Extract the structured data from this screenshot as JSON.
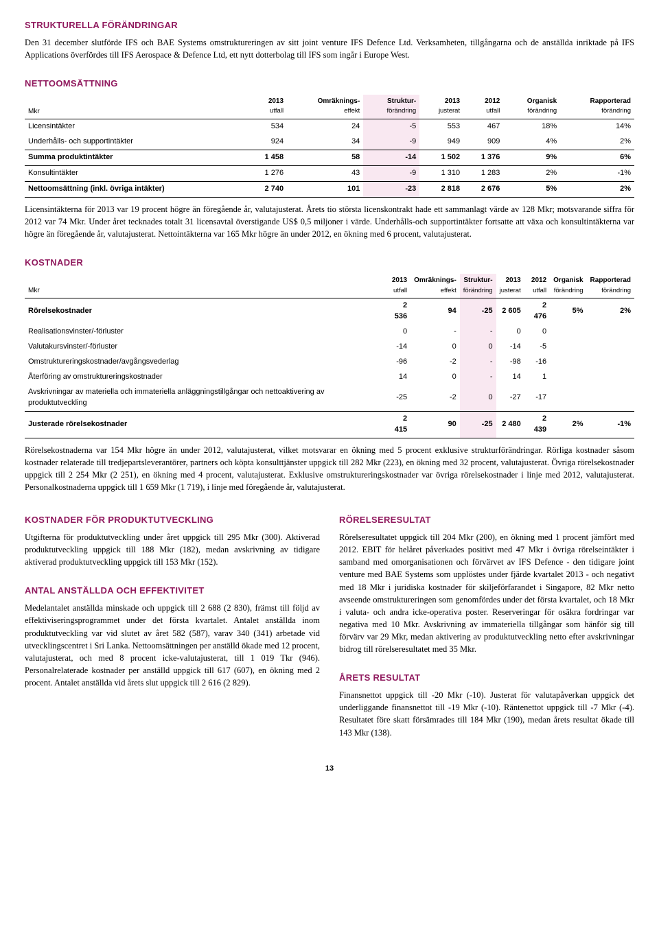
{
  "strukturella": {
    "heading": "STRUKTURELLA FÖRÄNDRINGAR",
    "body": "Den 31 december slutförde IFS och BAE Systems omstruktureringen av sitt joint venture IFS Defence Ltd. Verksamheten, tillgångarna och de anställda inriktade på IFS Applications överfördes till IFS Aerospace & Defence Ltd, ett nytt dotterbolag till IFS som ingår i Europe West."
  },
  "netto": {
    "heading": "NETTOOMSÄTTNING",
    "mkr": "Mkr",
    "cols": [
      {
        "l1": "2013",
        "l2": "utfall"
      },
      {
        "l1": "Omräknings-",
        "l2": "effekt"
      },
      {
        "l1": "Struktur-",
        "l2": "förändring"
      },
      {
        "l1": "2013",
        "l2": "justerat"
      },
      {
        "l1": "2012",
        "l2": "utfall"
      },
      {
        "l1": "Organisk",
        "l2": "förändring"
      },
      {
        "l1": "Rapporterad",
        "l2": "förändring"
      }
    ],
    "rows": [
      {
        "label": "Licensintäkter",
        "v": [
          "534",
          "24",
          "-5",
          "553",
          "467",
          "18%",
          "14%"
        ],
        "bold": false
      },
      {
        "label": "Underhålls- och supportintäkter",
        "v": [
          "924",
          "34",
          "-9",
          "949",
          "909",
          "4%",
          "2%"
        ],
        "bold": false
      },
      {
        "label": "Summa produktintäkter",
        "v": [
          "1 458",
          "58",
          "-14",
          "1 502",
          "1 376",
          "9%",
          "6%"
        ],
        "bold": true,
        "topline": true,
        "botline": true
      },
      {
        "label": "Konsultintäkter",
        "v": [
          "1 276",
          "43",
          "-9",
          "1 310",
          "1 283",
          "2%",
          "-1%"
        ],
        "bold": false
      },
      {
        "label": "Nettoomsättning (inkl. övriga intäkter)",
        "v": [
          "2 740",
          "101",
          "-23",
          "2 818",
          "2 676",
          "5%",
          "2%"
        ],
        "bold": true,
        "topline": true,
        "botline": true
      }
    ],
    "para": "Licensintäkterna för 2013 var 19 procent högre än föregående år, valutajusterat. Årets tio största licenskontrakt hade ett sammanlagt värde av 128 Mkr; motsvarande siffra för 2012 var 74 Mkr. Under året tecknades totalt 31 licensavtal överstigande US$ 0,5 miljoner i värde. Underhålls-och supportintäkter fortsatte att växa och konsultintäkterna var högre än föregående år, valutajusterat. Nettointäkterna var 165 Mkr högre än under 2012, en ökning med 6 procent, valutajusterat."
  },
  "kostnader": {
    "heading": "KOSTNADER",
    "mkr": "Mkr",
    "cols": [
      {
        "l1": "2013",
        "l2": "utfall"
      },
      {
        "l1": "Omräknings-",
        "l2": "effekt"
      },
      {
        "l1": "Struktur-",
        "l2": "förändring"
      },
      {
        "l1": "2013",
        "l2": "justerat"
      },
      {
        "l1": "2012",
        "l2": "utfall"
      },
      {
        "l1": "Organisk",
        "l2": "förändring"
      },
      {
        "l1": "Rapporterad",
        "l2": "förändring"
      }
    ],
    "rows": [
      {
        "label": "Rörelsekostnader",
        "v": [
          "2 536",
          "94",
          "-25",
          "2 605",
          "2 476",
          "5%",
          "2%"
        ],
        "bold": true
      },
      {
        "label": "Realisationsvinster/-förluster",
        "v": [
          "0",
          "-",
          "-",
          "0",
          "0",
          "",
          ""
        ],
        "bold": false
      },
      {
        "label": "Valutakursvinster/-förluster",
        "v": [
          "-14",
          "0",
          "0",
          "-14",
          "-5",
          "",
          ""
        ],
        "bold": false
      },
      {
        "label": "Omstruktureringskostnader/avgångsvederlag",
        "v": [
          "-96",
          "-2",
          "-",
          "-98",
          "-16",
          "",
          ""
        ],
        "bold": false
      },
      {
        "label": "Återföring av omstruktureringskostnader",
        "v": [
          "14",
          "0",
          "-",
          "14",
          "1",
          "",
          ""
        ],
        "bold": false
      },
      {
        "label": "Avskrivningar av materiella och immateriella anläggningstillgångar och nettoaktivering av produktutveckling",
        "v": [
          "-25",
          "-2",
          "0",
          "-27",
          "-17",
          "",
          ""
        ],
        "bold": false,
        "botline": true
      },
      {
        "label": "Justerade rörelsekostnader",
        "v": [
          "2 415",
          "90",
          "-25",
          "2 480",
          "2 439",
          "2%",
          "-1%"
        ],
        "bold": true,
        "botline": true
      }
    ],
    "para": "Rörelsekostnaderna var 154 Mkr högre än under 2012, valutajusterat, vilket motsvarar en ökning med 5 procent exklusive strukturförändringar. Rörliga kostnader såsom kostnader relaterade till tredjepartsleverantörer, partners och köpta konsulttjänster uppgick till 282 Mkr (223), en ökning med 32 procent, valutajusterat. Övriga rörelsekostnader uppgick till 2 254 Mkr (2 251), en ökning med 4 procent, valutajusterat. Exklusive omstruktureringskostnader var övriga rörelsekostnader i linje med 2012, valutajusterat. Personalkostnaderna uppgick till 1 659 Mkr (1 719), i linje med föregående år, valutajusterat."
  },
  "left1": {
    "heading": "KOSTNADER FÖR PRODUKTUTVECKLING",
    "body": "Utgifterna för produktutveckling under året uppgick till 295 Mkr (300). Aktiverad produktutveckling uppgick till 188 Mkr (182), medan avskrivning av tidigare aktiverad produktutveckling uppgick till 153 Mkr (152)."
  },
  "left2": {
    "heading": "ANTAL ANSTÄLLDA OCH EFFEKTIVITET",
    "body": "Medelantalet anställda minskade och uppgick till 2 688 (2 830), främst till följd av effektiviseringsprogrammet under det första kvartalet. Antalet anställda inom produktutveckling var vid slutet av året 582 (587), varav 340 (341) arbetade vid utvecklingscentret i Sri Lanka. Nettoomsättningen per anställd ökade med 12 procent, valutajusterat, och med 8 procent icke-valutajusterat, till 1 019 Tkr (946). Personalrelaterade kostnader per anställd uppgick till 617 (607), en ökning med 2 procent. Antalet anställda vid årets slut uppgick till 2 616 (2 829)."
  },
  "right1": {
    "heading": "RÖRELSERESULTAT",
    "body": "Rörelseresultatet uppgick till 204 Mkr (200), en ökning med 1 procent jämfört med 2012. EBIT för helåret påverkades positivt med 47 Mkr i övriga rörelseintäkter i samband med omorganisationen och förvärvet av IFS Defence - den tidigare joint venture med BAE Systems som upplöstes under fjärde kvartalet 2013 - och negativt med 18 Mkr i juridiska kostnader för skiljeförfarandet i Singapore, 82 Mkr netto avseende omstruktureringen som genomfördes under det första kvartalet, och 18 Mkr i valuta- och andra icke-operativa poster. Reserveringar för osäkra fordringar var negativa med 10 Mkr. Avskrivning av immateriella tillgångar som hänför sig till förvärv var 29 Mkr, medan aktivering av produktutveckling netto efter avskrivningar bidrog till rörelseresultatet med 35 Mkr."
  },
  "right2": {
    "heading": "ÅRETS RESULTAT",
    "body": "Finansnettot uppgick till -20 Mkr (-10). Justerat för valutapåverkan uppgick det underliggande finansnettot till -19 Mkr (-10). Räntenettot uppgick till -7 Mkr (-4). Resultatet före skatt försämrades till 184 Mkr (190), medan årets resultat ökade till 143 Mkr (138)."
  },
  "pagenum": "13",
  "pinkColIndex": 2,
  "colors": {
    "heading": "#901a5e",
    "pink": "#f9e8f1"
  }
}
